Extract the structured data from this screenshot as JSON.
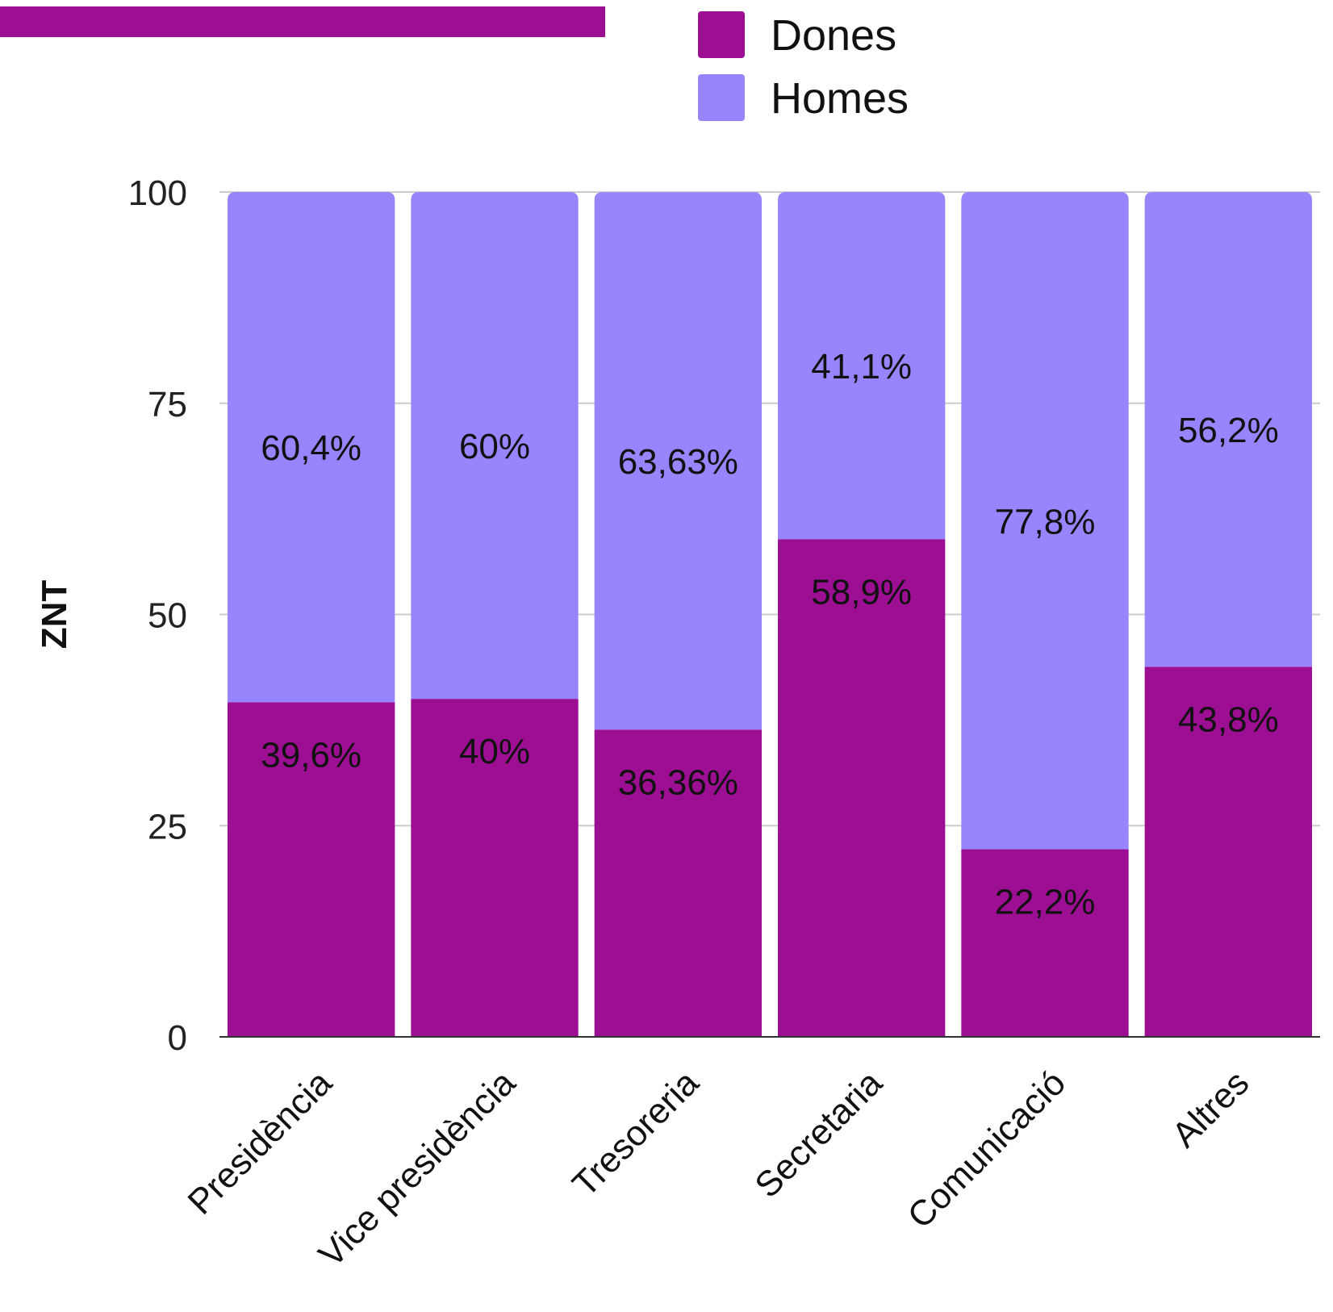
{
  "colors": {
    "accent": "#9c0e92",
    "dones": "#9c0e92",
    "homes": "#9885fe",
    "grid": "#cccccc",
    "axis": "#333333"
  },
  "chart_data": {
    "type": "bar",
    "stacked": true,
    "categories": [
      "Presidència",
      "Vice presidència",
      "Tresoreria",
      "Secretaria",
      "Comunicació",
      "Altres"
    ],
    "series": [
      {
        "name": "Dones",
        "values": [
          39.6,
          40,
          36.36,
          58.9,
          22.2,
          43.8
        ],
        "labels": [
          "39,6%",
          "40%",
          "36,36%",
          "58,9%",
          "22,2%",
          "43,8%"
        ]
      },
      {
        "name": "Homes",
        "values": [
          60.4,
          60,
          63.63,
          41.1,
          77.8,
          56.2
        ],
        "labels": [
          "60,4%",
          "60%",
          "63,63%",
          "41,1%",
          "77,8%",
          "56,2%"
        ]
      }
    ],
    "ylabel": "ZNT",
    "ylim": [
      0,
      100
    ],
    "yticks": [
      "0",
      "25",
      "50",
      "75",
      "100"
    ],
    "grid": true,
    "legend": "top"
  }
}
